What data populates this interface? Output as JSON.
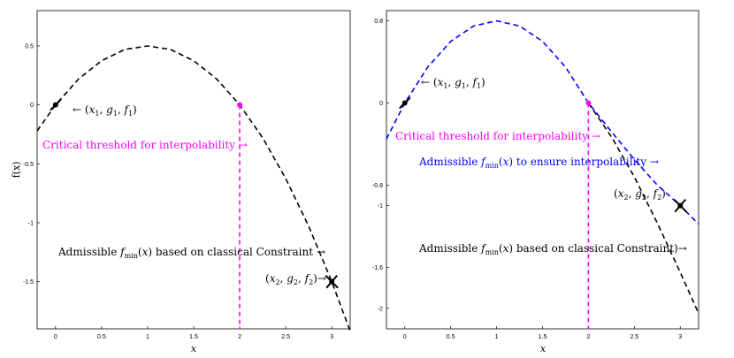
{
  "chart_data": [
    {
      "type": "line",
      "title": "",
      "xlabel": "x",
      "ylabel": "f(x)",
      "xlim": [
        -0.2,
        3.2
      ],
      "ylim": [
        -1.9,
        0.8
      ],
      "xticks": [
        0,
        0.5,
        1,
        1.5,
        2,
        2.5,
        3
      ],
      "xticklabels": [
        "0",
        "0.5",
        "1",
        "1.5",
        "2",
        "2.5",
        "3"
      ],
      "yticks": [
        0.5,
        0,
        -0.5,
        -1,
        -1.5
      ],
      "yticklabels": [
        "0.5",
        "0",
        "-0.5",
        "-1",
        "-1.5"
      ],
      "grid": false,
      "series": [
        {
          "style": "dashed",
          "color": "#000000",
          "x": [
            -0.2,
            0.0,
            0.25,
            0.5,
            0.75,
            1.0,
            1.25,
            1.5,
            1.75,
            2.0,
            2.25,
            2.5,
            2.75,
            3.0,
            3.2
          ],
          "y": [
            -0.22,
            0.0,
            0.22,
            0.375,
            0.47,
            0.5,
            0.47,
            0.375,
            0.22,
            0.0,
            -0.28,
            -0.625,
            -1.03,
            -1.5,
            -1.92
          ]
        }
      ],
      "points": [
        {
          "x": 0,
          "y": 0,
          "label": "← (x1, g1, f1)",
          "marker_color": "#000000"
        },
        {
          "x": 2,
          "y": 0,
          "label": "",
          "marker_color": "#ff00ff"
        },
        {
          "x": 3,
          "y": -1.5,
          "label": "(x2, g2, f2)→",
          "marker_color": "#000000"
        }
      ],
      "vline": {
        "x": 2,
        "color": "#ff00ff",
        "style": "dashed"
      },
      "annotations": [
        {
          "text": "Critical threshold for interpolability →",
          "color": "#ff00ff"
        },
        {
          "text": "Admissible fmin(x) based on classical Constraint →",
          "color": "#000000"
        }
      ]
    },
    {
      "type": "line",
      "title": "",
      "xlabel": "x",
      "ylabel": "",
      "xlim": [
        -0.2,
        3.2
      ],
      "ylim": [
        -2.2,
        0.9
      ],
      "xticks": [
        0,
        0.5,
        1,
        1.5,
        2,
        2.5,
        3
      ],
      "xticklabels": [
        "0",
        "0.5",
        "1",
        "1.5",
        "2",
        "2.5",
        "3"
      ],
      "yticks": [
        0.8,
        0,
        -0.8,
        -1,
        -1.6,
        -2
      ],
      "yticklabels": [
        "0.8",
        "0",
        "-0.8",
        "-1",
        "-1.6",
        "-2"
      ],
      "grid": false,
      "series": [
        {
          "style": "dashed",
          "color": "#0000ff",
          "x": [
            -0.2,
            0.0,
            0.25,
            0.5,
            0.75,
            1.0,
            1.25,
            1.5,
            1.75,
            2.0,
            2.25,
            2.5,
            2.75,
            3.0,
            3.2
          ],
          "y": [
            -0.35,
            0.0,
            0.35,
            0.6,
            0.75,
            0.8,
            0.75,
            0.6,
            0.35,
            0.0,
            -0.28,
            -0.55,
            -0.8,
            -1.0,
            -1.18
          ]
        },
        {
          "style": "dashed",
          "color": "#000000",
          "x": [
            2.0,
            2.25,
            2.5,
            2.75,
            3.0,
            3.2
          ],
          "y": [
            0.0,
            -0.33,
            -0.72,
            -1.17,
            -1.65,
            -2.05
          ]
        }
      ],
      "points": [
        {
          "x": 0,
          "y": 0,
          "label": "← (x1, g1, f1)",
          "marker_color": "#000000"
        },
        {
          "x": 2,
          "y": 0,
          "label": "",
          "marker_color": "#ff00ff"
        },
        {
          "x": 3,
          "y": -1,
          "label": "(x2, g2, f2)",
          "marker_color": "#000000"
        }
      ],
      "vline": {
        "x": 2,
        "color": "#ff00ff",
        "style": "dashed"
      },
      "annotations": [
        {
          "text": "Critical threshold for interpolability →",
          "color": "#ff00ff"
        },
        {
          "text": "Admissible fmin(x) to ensure interpolability →",
          "color": "#0000ff"
        },
        {
          "text": "Admissible fmin(x) based on classical Constraint)→",
          "color": "#000000"
        }
      ]
    }
  ]
}
